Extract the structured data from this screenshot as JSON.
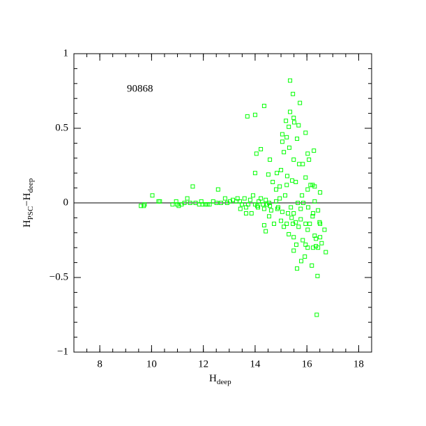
{
  "chart_data": {
    "type": "scatter",
    "annotation": "90868",
    "xlabel": [
      "H",
      "deep"
    ],
    "ylabel": [
      "H",
      "PSC",
      "−H",
      "deep"
    ],
    "xlim": [
      7,
      18.5
    ],
    "ylim": [
      -1,
      1
    ],
    "xticks": [
      8,
      10,
      12,
      14,
      16,
      18
    ],
    "yticks": [
      {
        "value": -1,
        "label": "−1"
      },
      {
        "value": -0.5,
        "label": "−0.5"
      },
      0,
      0.5,
      1
    ],
    "x_minor_per_major": 4,
    "y_minor_per_major": 5,
    "hline": 0,
    "grid": false,
    "series": [
      {
        "color": "#00ff00",
        "x": [
          9.59,
          9.73,
          9.7,
          10.03,
          10.27,
          10.32,
          10.81,
          10.95,
          10.99,
          11.05,
          11.16,
          11.27,
          11.38,
          11.49,
          11.59,
          11.7,
          11.84,
          11.92,
          11.97,
          12.08,
          12.16,
          12.24,
          12.38,
          12.51,
          12.57,
          12.68,
          12.84,
          12.92,
          13.03,
          13.14,
          13.27,
          13.32,
          13.41,
          13.49,
          13.59,
          13.65,
          13.73,
          13.81,
          13.92,
          14.0,
          14.08,
          14.14,
          14.22,
          14.3,
          14.35,
          14.41,
          14.46,
          14.54,
          14.62,
          13.7,
          14.0,
          14.35,
          14.22,
          14.0,
          14.05,
          14.57,
          14.84,
          14.95,
          15.05,
          15.11,
          15.19,
          15.22,
          15.32,
          15.49,
          15.51,
          15.68,
          15.73,
          15.84,
          15.95,
          16.03,
          16.27,
          15.81,
          16.03,
          16.14,
          16.3,
          16.08,
          15.35,
          15.46,
          15.35,
          15.3,
          15.05,
          15.62,
          15.24,
          15.49,
          15.7,
          14.68,
          14.51,
          14.81,
          15.0,
          15.22,
          15.43,
          15.57,
          15.95,
          16.22,
          16.51,
          14.35,
          14.41,
          14.54,
          14.73,
          14.86,
          15.0,
          15.11,
          15.22,
          15.3,
          15.41,
          15.49,
          15.59,
          15.68,
          15.76,
          15.84,
          15.95,
          16.03,
          16.11,
          16.22,
          16.3,
          16.35,
          16.43,
          16.51,
          16.57,
          16.73,
          16.19,
          15.49,
          15.62,
          16.03,
          16.41,
          16.38,
          15.92,
          15.78,
          15.27,
          14.89,
          15.05,
          15.38,
          15.49,
          15.76,
          16.05,
          16.24,
          16.43,
          16.49,
          15.46,
          15.57,
          15.95,
          14.95,
          15.16,
          15.65,
          15.86,
          16.3,
          14.57,
          14.81,
          13.65,
          13.86,
          14.11,
          13.43,
          16.24,
          16.35,
          16.51,
          16.68
        ],
        "values": [
          -0.02,
          -0.01,
          -0.02,
          0.05,
          0.01,
          0.01,
          -0.01,
          0.01,
          -0.01,
          -0.02,
          -0.01,
          0.0,
          0.03,
          0.0,
          0.11,
          0.0,
          -0.01,
          0.01,
          -0.01,
          -0.01,
          -0.01,
          -0.01,
          0.01,
          0.0,
          0.09,
          0.0,
          0.03,
          0.0,
          0.01,
          0.02,
          0.01,
          0.03,
          0.01,
          -0.01,
          0.03,
          -0.03,
          -0.01,
          0.02,
          0.05,
          -0.01,
          -0.02,
          0.01,
          0.03,
          -0.01,
          -0.04,
          0.02,
          -0.01,
          0.0,
          -0.05,
          0.58,
          0.59,
          0.65,
          0.36,
          0.2,
          0.33,
          0.29,
          0.2,
          0.11,
          0.41,
          0.34,
          0.55,
          0.44,
          0.37,
          0.57,
          0.54,
          0.52,
          0.67,
          0.26,
          0.47,
          0.33,
          0.35,
          0.05,
          0.09,
          0.12,
          0.11,
          0.29,
          0.82,
          0.73,
          0.61,
          0.51,
          0.46,
          0.43,
          0.18,
          0.29,
          0.26,
          0.14,
          0.19,
          0.09,
          0.22,
          0.12,
          0.15,
          0.14,
          0.17,
          0.12,
          0.07,
          -0.15,
          -0.19,
          -0.09,
          -0.14,
          -0.04,
          -0.12,
          -0.16,
          -0.14,
          -0.21,
          -0.1,
          -0.23,
          -0.28,
          -0.16,
          -0.11,
          -0.25,
          -0.28,
          -0.18,
          -0.14,
          -0.09,
          -0.22,
          -0.24,
          -0.3,
          -0.14,
          -0.27,
          -0.33,
          -0.42,
          -0.32,
          -0.44,
          -0.3,
          -0.49,
          -0.75,
          -0.36,
          -0.39,
          -0.07,
          -0.03,
          -0.06,
          -0.03,
          -0.07,
          -0.04,
          -0.03,
          -0.07,
          -0.05,
          -0.13,
          -0.14,
          -0.13,
          -0.14,
          0.03,
          0.05,
          0.0,
          0.0,
          0.01,
          -0.02,
          0.01,
          -0.07,
          -0.07,
          -0.03,
          -0.04,
          -0.3,
          -0.29,
          -0.23,
          -0.18
        ]
      }
    ]
  }
}
